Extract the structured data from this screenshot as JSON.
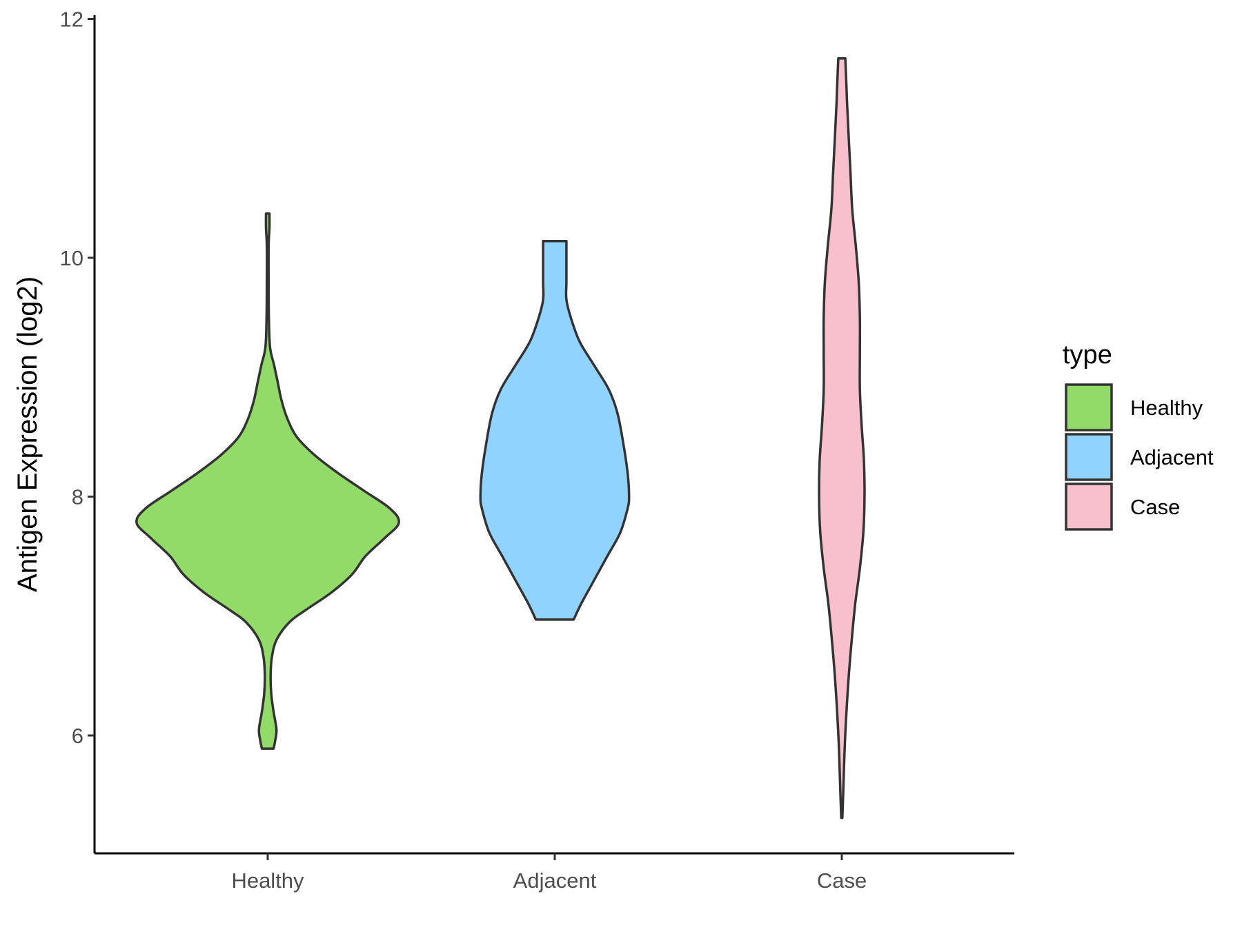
{
  "chart_data": {
    "type": "violin",
    "title": "",
    "xlabel": "",
    "ylabel": "Antigen Expression (log2)",
    "ylim": [
      5.0,
      12.0
    ],
    "yticks": [
      6,
      8,
      10,
      12
    ],
    "grid": false,
    "legend": {
      "title": "type",
      "placement": "right",
      "entries": [
        "Healthy",
        "Adjacent",
        "Case"
      ]
    },
    "categories": [
      "Healthy",
      "Adjacent",
      "Case"
    ],
    "series": [
      {
        "name": "Healthy",
        "color": "#93DB69",
        "min": 5.89,
        "max": 10.37,
        "profile": [
          [
            5.89,
            0.02
          ],
          [
            5.95,
            0.025
          ],
          [
            6.05,
            0.03
          ],
          [
            6.2,
            0.02
          ],
          [
            6.35,
            0.012
          ],
          [
            6.5,
            0.01
          ],
          [
            6.65,
            0.014
          ],
          [
            6.8,
            0.03
          ],
          [
            6.95,
            0.075
          ],
          [
            7.05,
            0.13
          ],
          [
            7.2,
            0.22
          ],
          [
            7.35,
            0.29
          ],
          [
            7.5,
            0.335
          ],
          [
            7.65,
            0.4
          ],
          [
            7.78,
            0.45
          ],
          [
            7.9,
            0.42
          ],
          [
            8.05,
            0.33
          ],
          [
            8.2,
            0.24
          ],
          [
            8.35,
            0.16
          ],
          [
            8.5,
            0.1
          ],
          [
            8.65,
            0.068
          ],
          [
            8.8,
            0.048
          ],
          [
            8.95,
            0.035
          ],
          [
            9.1,
            0.022
          ],
          [
            9.25,
            0.008
          ],
          [
            9.5,
            0.004
          ],
          [
            9.8,
            0.003
          ],
          [
            10.1,
            0.003
          ],
          [
            10.25,
            0.006
          ],
          [
            10.37,
            0.006
          ]
        ]
      },
      {
        "name": "Adjacent",
        "color": "#91D3FF",
        "min": 6.97,
        "max": 10.14,
        "profile": [
          [
            6.97,
            0.065
          ],
          [
            7.1,
            0.09
          ],
          [
            7.3,
            0.135
          ],
          [
            7.5,
            0.18
          ],
          [
            7.7,
            0.225
          ],
          [
            7.9,
            0.25
          ],
          [
            8.0,
            0.255
          ],
          [
            8.2,
            0.25
          ],
          [
            8.45,
            0.235
          ],
          [
            8.7,
            0.215
          ],
          [
            8.9,
            0.185
          ],
          [
            9.1,
            0.135
          ],
          [
            9.3,
            0.085
          ],
          [
            9.5,
            0.055
          ],
          [
            9.65,
            0.04
          ],
          [
            9.8,
            0.04
          ],
          [
            10.0,
            0.04
          ],
          [
            10.14,
            0.04
          ]
        ]
      },
      {
        "name": "Case",
        "color": "#F7C0CC",
        "min": 5.31,
        "max": 11.67,
        "profile": [
          [
            5.31,
            0.002
          ],
          [
            5.6,
            0.006
          ],
          [
            5.9,
            0.01
          ],
          [
            6.2,
            0.016
          ],
          [
            6.5,
            0.024
          ],
          [
            6.8,
            0.034
          ],
          [
            7.1,
            0.046
          ],
          [
            7.4,
            0.062
          ],
          [
            7.7,
            0.074
          ],
          [
            8.0,
            0.078
          ],
          [
            8.3,
            0.076
          ],
          [
            8.6,
            0.068
          ],
          [
            8.9,
            0.062
          ],
          [
            9.2,
            0.062
          ],
          [
            9.5,
            0.062
          ],
          [
            9.8,
            0.058
          ],
          [
            10.1,
            0.048
          ],
          [
            10.4,
            0.036
          ],
          [
            10.7,
            0.03
          ],
          [
            11.0,
            0.024
          ],
          [
            11.3,
            0.018
          ],
          [
            11.5,
            0.015
          ],
          [
            11.67,
            0.012
          ]
        ]
      }
    ]
  }
}
